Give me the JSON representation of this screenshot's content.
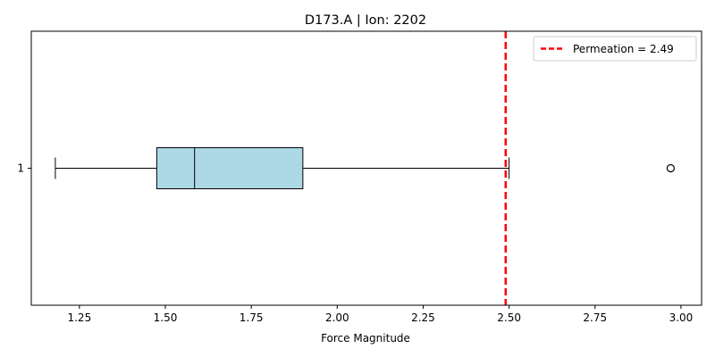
{
  "chart_data": {
    "type": "boxplot",
    "title": "D173.A | Ion: 2202",
    "xlabel": "Force Magnitude",
    "ylabel": "",
    "orientation": "horizontal",
    "xlim": [
      1.11,
      3.06
    ],
    "x_ticks": [
      1.25,
      1.5,
      1.75,
      2.0,
      2.25,
      2.5,
      2.75,
      3.0
    ],
    "x_tick_labels": [
      "1.25",
      "1.50",
      "1.75",
      "2.00",
      "2.25",
      "2.50",
      "2.75",
      "3.00"
    ],
    "y_tick_labels": [
      "1"
    ],
    "box": {
      "category": "1",
      "whisker_low": 1.18,
      "q1": 1.475,
      "median": 1.585,
      "q3": 1.9,
      "whisker_high": 2.5,
      "outliers": [
        2.97
      ],
      "fill_color": "#add8e6"
    },
    "reference_line": {
      "label": "Permeation = 2.49",
      "value": 2.49,
      "color": "#ff0000",
      "style": "dashed"
    },
    "grid": false,
    "legend_position": "top-right"
  }
}
